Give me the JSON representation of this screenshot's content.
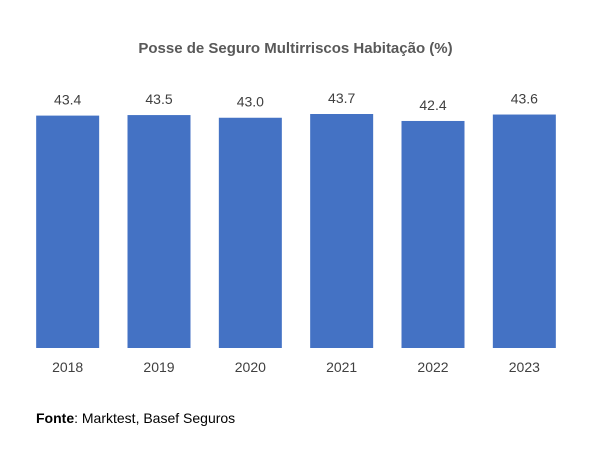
{
  "chart_data": {
    "type": "bar",
    "title": "Posse de Seguro Multirriscos Habitação (%)",
    "categories": [
      "2018",
      "2019",
      "2020",
      "2021",
      "2022",
      "2023"
    ],
    "values": [
      43.4,
      43.5,
      43.0,
      43.7,
      42.4,
      43.6
    ],
    "value_labels": [
      "43.4",
      "43.5",
      "43.0",
      "43.7",
      "42.4",
      "43.6"
    ],
    "xlabel": "",
    "ylabel": "",
    "ylim": [
      0,
      43.7
    ],
    "grid": false,
    "legend": "none",
    "bar_color": "#4472C4"
  },
  "source": {
    "label": "Fonte",
    "text": ": Marktest, Basef Seguros"
  }
}
